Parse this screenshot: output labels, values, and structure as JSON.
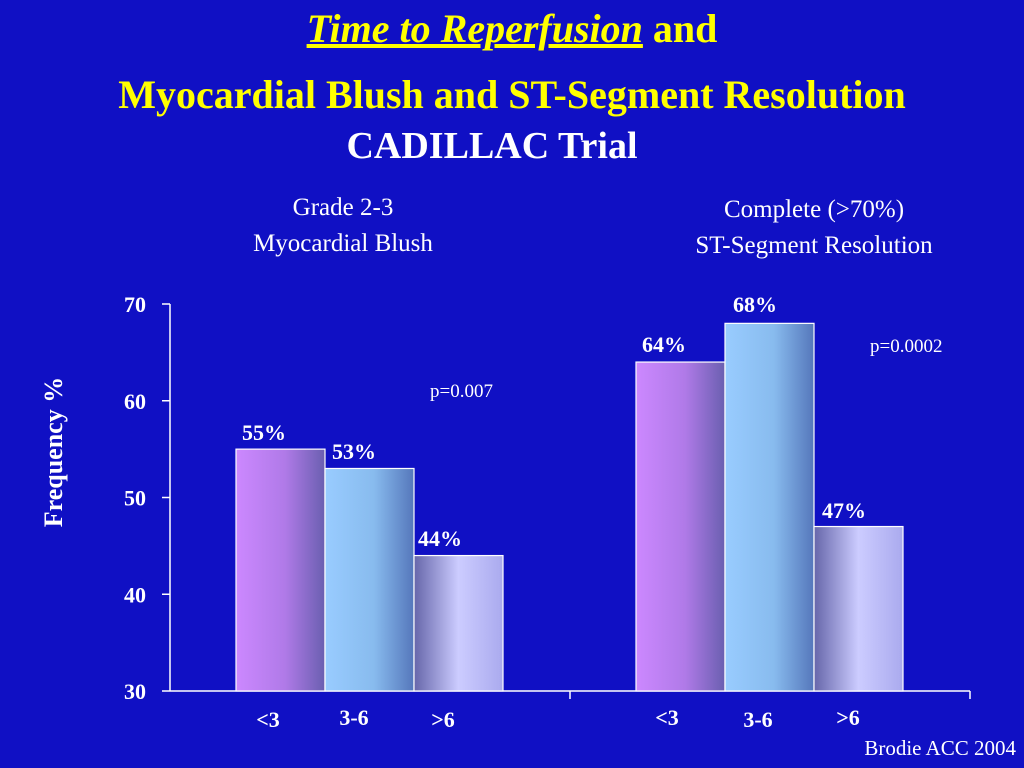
{
  "slide": {
    "title_italic": "Time to Reperfusion",
    "title_rest": " and",
    "title_line2": "Myocardial Blush and ST-Segment Resolution",
    "subtitle": "CADILLAC Trial",
    "credit": "Brodie ACC 2004"
  },
  "chart_data": {
    "type": "bar",
    "ylabel": "Frequency %",
    "ylim": [
      30,
      70
    ],
    "yticks": [
      30,
      40,
      50,
      60,
      70
    ],
    "categories": [
      "<3",
      "3-6",
      ">6"
    ],
    "bar_colors": [
      "#cc88ff",
      "#99ccff",
      "#ccccff"
    ],
    "groups": [
      {
        "label_line1": "Grade 2-3",
        "label_line2": "Myocardial Blush",
        "values": [
          55,
          53,
          44
        ],
        "value_labels": [
          "55%",
          "53%",
          "44%"
        ],
        "p_value": "p=0.007"
      },
      {
        "label_line1": "Complete (>70%)",
        "label_line2": "ST-Segment Resolution",
        "values": [
          64,
          68,
          47
        ],
        "value_labels": [
          "64%",
          "68%",
          "47%"
        ],
        "p_value": "p=0.0002"
      }
    ]
  }
}
